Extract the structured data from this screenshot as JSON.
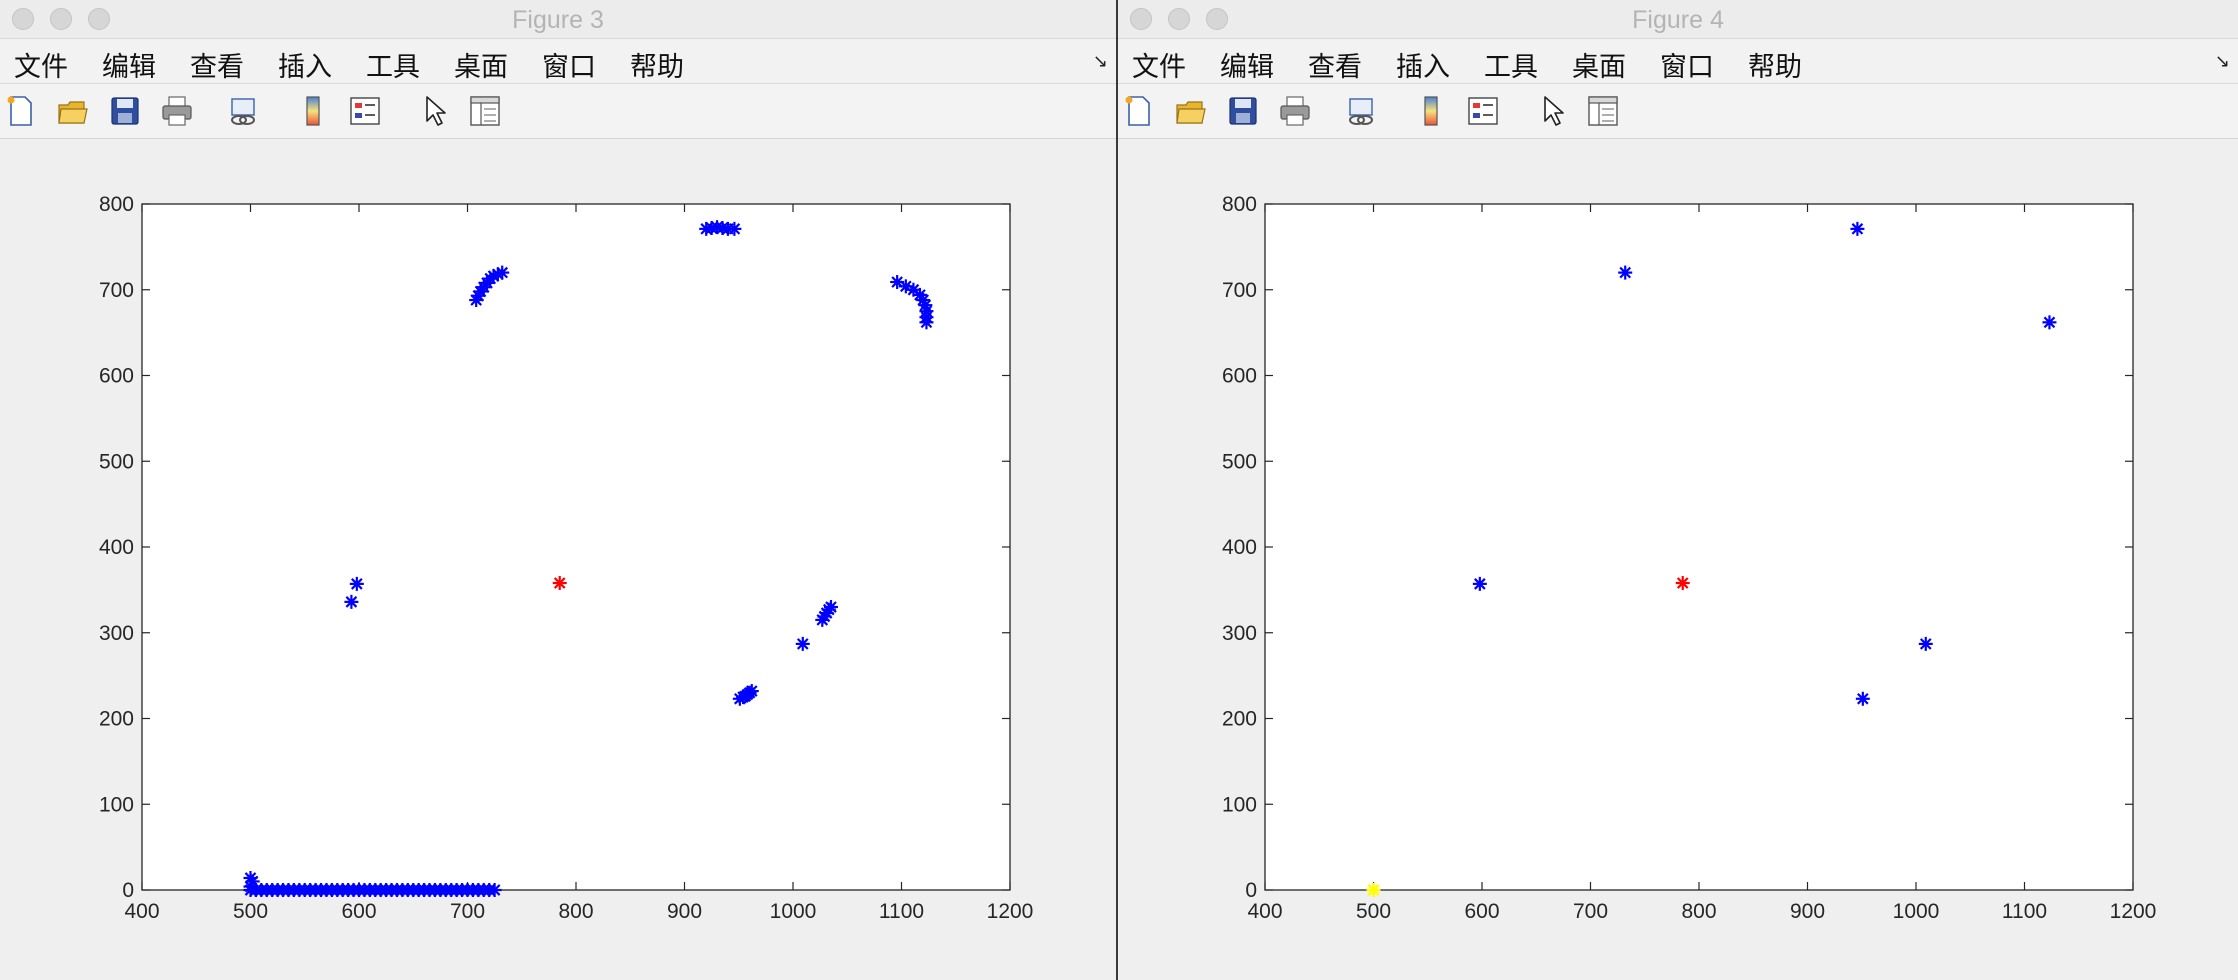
{
  "windows": [
    {
      "title": "Figure 3",
      "menu": [
        "文件",
        "编辑",
        "查看",
        "插入",
        "工具",
        "桌面",
        "窗口",
        "帮助"
      ],
      "menu_overflow_icon": "expand-arrow-icon",
      "toolbar_icons": [
        "new-figure-icon",
        "open-file-icon",
        "save-icon",
        "print-icon",
        "link-plot-icon",
        "colorbar-icon",
        "legend-icon",
        "edit-plot-pointer-icon",
        "property-inspector-icon"
      ],
      "chart_data": {
        "type": "scatter",
        "xlim": [
          400,
          1200
        ],
        "ylim": [
          0,
          800
        ],
        "xticks": [
          "400",
          "500",
          "600",
          "700",
          "800",
          "900",
          "1000",
          "1100",
          "1200"
        ],
        "yticks": [
          "0",
          "100",
          "200",
          "300",
          "400",
          "500",
          "600",
          "700",
          "800"
        ],
        "grid": false,
        "marker": "*",
        "series": [
          {
            "color": "#0000ff",
            "points": [
              [
                500,
                0
              ],
              [
                500,
                4
              ],
              [
                502,
                10
              ],
              [
                500,
                14
              ],
              [
                505,
                0
              ],
              [
                510,
                0
              ],
              [
                515,
                0
              ],
              [
                520,
                0
              ],
              [
                525,
                0
              ],
              [
                530,
                0
              ],
              [
                535,
                0
              ],
              [
                540,
                0
              ],
              [
                545,
                0
              ],
              [
                550,
                0
              ],
              [
                555,
                0
              ],
              [
                560,
                0
              ],
              [
                565,
                0
              ],
              [
                570,
                0
              ],
              [
                575,
                0
              ],
              [
                580,
                0
              ],
              [
                585,
                0
              ],
              [
                590,
                0
              ],
              [
                595,
                0
              ],
              [
                600,
                0
              ],
              [
                605,
                0
              ],
              [
                610,
                0
              ],
              [
                615,
                0
              ],
              [
                620,
                0
              ],
              [
                625,
                0
              ],
              [
                630,
                0
              ],
              [
                635,
                0
              ],
              [
                640,
                0
              ],
              [
                645,
                0
              ],
              [
                650,
                0
              ],
              [
                655,
                0
              ],
              [
                660,
                0
              ],
              [
                665,
                0
              ],
              [
                670,
                0
              ],
              [
                675,
                0
              ],
              [
                680,
                0
              ],
              [
                685,
                0
              ],
              [
                690,
                0
              ],
              [
                695,
                0
              ],
              [
                700,
                0
              ],
              [
                705,
                0
              ],
              [
                710,
                0
              ],
              [
                715,
                0
              ],
              [
                720,
                0
              ],
              [
                725,
                0
              ],
              [
                593,
                336
              ],
              [
                598,
                357
              ],
              [
                708,
                688
              ],
              [
                710,
                693
              ],
              [
                712,
                698
              ],
              [
                715,
                703
              ],
              [
                718,
                708
              ],
              [
                721,
                713
              ],
              [
                724,
                716
              ],
              [
                728,
                718
              ],
              [
                732,
                720
              ],
              [
                920,
                771
              ],
              [
                925,
                772
              ],
              [
                930,
                773
              ],
              [
                935,
                772
              ],
              [
                940,
                771
              ],
              [
                946,
                771
              ],
              [
                1096,
                709
              ],
              [
                1104,
                704
              ],
              [
                1111,
                700
              ],
              [
                1117,
                694
              ],
              [
                1120,
                688
              ],
              [
                1122,
                682
              ],
              [
                1123,
                675
              ],
              [
                1123,
                668
              ],
              [
                1123,
                662
              ],
              [
                1009,
                287
              ],
              [
                1027,
                315
              ],
              [
                1029,
                319
              ],
              [
                1031,
                323
              ],
              [
                1033,
                327
              ],
              [
                1035,
                330
              ],
              [
                951,
                223
              ],
              [
                954,
                225
              ],
              [
                956,
                226
              ],
              [
                958,
                228
              ],
              [
                960,
                230
              ],
              [
                962,
                232
              ]
            ]
          },
          {
            "color": "#ff0000",
            "points": [
              [
                785,
                358
              ]
            ]
          }
        ]
      }
    },
    {
      "title": "Figure 4",
      "menu": [
        "文件",
        "编辑",
        "查看",
        "插入",
        "工具",
        "桌面",
        "窗口",
        "帮助"
      ],
      "menu_overflow_icon": "expand-arrow-icon",
      "toolbar_icons": [
        "new-figure-icon",
        "open-file-icon",
        "save-icon",
        "print-icon",
        "link-plot-icon",
        "colorbar-icon",
        "legend-icon",
        "edit-plot-pointer-icon",
        "property-inspector-icon"
      ],
      "chart_data": {
        "type": "scatter",
        "xlim": [
          400,
          1200
        ],
        "ylim": [
          0,
          800
        ],
        "xticks": [
          "400",
          "500",
          "600",
          "700",
          "800",
          "900",
          "1000",
          "1100",
          "1200"
        ],
        "yticks": [
          "0",
          "100",
          "200",
          "300",
          "400",
          "500",
          "600",
          "700",
          "800"
        ],
        "grid": false,
        "marker": "*",
        "series": [
          {
            "color": "#0000ff",
            "points": [
              [
                598,
                357
              ],
              [
                732,
                720
              ],
              [
                946,
                771
              ],
              [
                1123,
                662
              ],
              [
                1009,
                287
              ],
              [
                951,
                223
              ]
            ]
          },
          {
            "color": "#ff0000",
            "points": [
              [
                785,
                358
              ]
            ]
          },
          {
            "color": "#ffff00",
            "points": [
              [
                500,
                0
              ]
            ]
          }
        ]
      }
    }
  ]
}
